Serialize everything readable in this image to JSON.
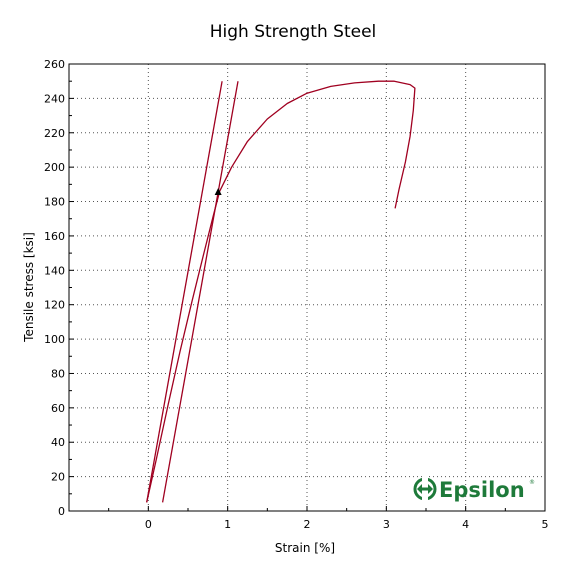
{
  "chart_data": {
    "type": "line",
    "title": "High Strength Steel",
    "xlabel": "Strain [%]",
    "ylabel": "Tensile stress [ksi]",
    "xlim": [
      -1,
      5
    ],
    "ylim": [
      0,
      260
    ],
    "x_ticks": [
      0,
      1,
      2,
      3,
      4,
      5
    ],
    "y_ticks": [
      0,
      20,
      40,
      60,
      80,
      100,
      120,
      140,
      160,
      180,
      200,
      220,
      240,
      260
    ],
    "grid": "dotted",
    "line_color": "#a00020",
    "series": [
      {
        "x": [
          -0.02,
          0.1,
          0.25,
          0.4,
          0.55,
          0.7,
          0.82,
          0.9,
          1.05,
          1.25,
          1.5,
          1.75,
          2.0,
          2.3,
          2.6,
          2.9,
          3.1,
          3.3,
          3.36,
          3.34,
          3.3,
          3.24,
          3.16,
          3.11
        ],
        "y": [
          5,
          30,
          62,
          93,
          122,
          150,
          172,
          186,
          200,
          215,
          228,
          237,
          243,
          247,
          249,
          250,
          250,
          248,
          246,
          233,
          218,
          203,
          187,
          176
        ]
      },
      {
        "x": [
          -0.02,
          0.93
        ],
        "y": [
          5,
          250
        ]
      },
      {
        "x": [
          0.18,
          1.13
        ],
        "y": [
          5,
          250
        ]
      }
    ],
    "annotations": [
      {
        "type": "marker",
        "shape": "triangle",
        "x": 0.88,
        "y": 185
      }
    ]
  },
  "logo": {
    "text": "Epsilon",
    "mark": "®",
    "color": "#1e7a3a"
  }
}
